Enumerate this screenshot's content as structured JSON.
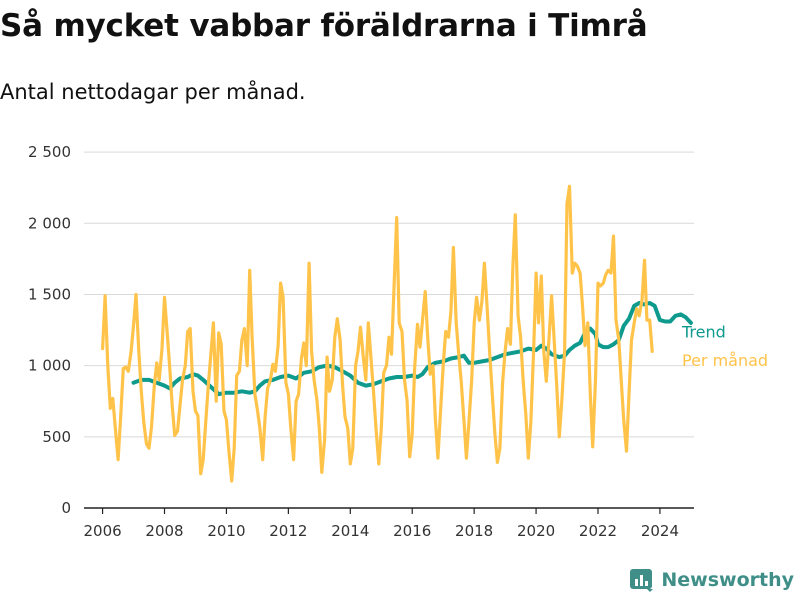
{
  "title": "Så mycket vabbar föräldrarna i Timrå",
  "subtitle": "Antal nettodagar per månad.",
  "brand": "Newsworthy",
  "chart_data": {
    "type": "line",
    "x_axis": {
      "range": [
        2005.4,
        2025.1
      ],
      "ticks": [
        2006,
        2008,
        2010,
        2012,
        2014,
        2016,
        2018,
        2020,
        2022,
        2024
      ]
    },
    "y_axis": {
      "range": [
        0,
        2550
      ],
      "ticks": [
        0,
        500,
        1000,
        1500,
        2000,
        2500
      ],
      "tick_labels": [
        "0",
        "500",
        "1 000",
        "1 500",
        "2 000",
        "2 500"
      ]
    },
    "grid": "horizontal",
    "legend": "right, at line ends",
    "series": [
      {
        "name": "Per månad",
        "color": "#ffc34a",
        "points": [
          [
            2006.0,
            1120
          ],
          [
            2006.08,
            1490
          ],
          [
            2006.17,
            1000
          ],
          [
            2006.25,
            700
          ],
          [
            2006.33,
            770
          ],
          [
            2006.42,
            540
          ],
          [
            2006.5,
            340
          ],
          [
            2006.58,
            620
          ],
          [
            2006.67,
            980
          ],
          [
            2006.75,
            990
          ],
          [
            2006.83,
            960
          ],
          [
            2006.92,
            1100
          ],
          [
            2007.0,
            1280
          ],
          [
            2007.08,
            1500
          ],
          [
            2007.17,
            1100
          ],
          [
            2007.25,
            820
          ],
          [
            2007.33,
            600
          ],
          [
            2007.42,
            450
          ],
          [
            2007.5,
            420
          ],
          [
            2007.58,
            570
          ],
          [
            2007.67,
            860
          ],
          [
            2007.75,
            1020
          ],
          [
            2007.83,
            900
          ],
          [
            2007.92,
            1120
          ],
          [
            2008.0,
            1480
          ],
          [
            2008.08,
            1250
          ],
          [
            2008.17,
            980
          ],
          [
            2008.25,
            720
          ],
          [
            2008.33,
            510
          ],
          [
            2008.42,
            540
          ],
          [
            2008.5,
            720
          ],
          [
            2008.58,
            900
          ],
          [
            2008.67,
            1000
          ],
          [
            2008.75,
            1240
          ],
          [
            2008.83,
            1260
          ],
          [
            2008.92,
            820
          ],
          [
            2009.0,
            680
          ],
          [
            2009.08,
            650
          ],
          [
            2009.17,
            240
          ],
          [
            2009.25,
            340
          ],
          [
            2009.33,
            600
          ],
          [
            2009.42,
            880
          ],
          [
            2009.5,
            1090
          ],
          [
            2009.58,
            1300
          ],
          [
            2009.67,
            750
          ],
          [
            2009.75,
            1230
          ],
          [
            2009.83,
            1150
          ],
          [
            2009.92,
            680
          ],
          [
            2010.0,
            620
          ],
          [
            2010.08,
            400
          ],
          [
            2010.17,
            190
          ],
          [
            2010.25,
            420
          ],
          [
            2010.33,
            930
          ],
          [
            2010.42,
            960
          ],
          [
            2010.5,
            1180
          ],
          [
            2010.58,
            1260
          ],
          [
            2010.67,
            1000
          ],
          [
            2010.75,
            1670
          ],
          [
            2010.83,
            1200
          ],
          [
            2010.92,
            800
          ],
          [
            2011.0,
            690
          ],
          [
            2011.08,
            560
          ],
          [
            2011.17,
            340
          ],
          [
            2011.25,
            640
          ],
          [
            2011.33,
            840
          ],
          [
            2011.42,
            900
          ],
          [
            2011.5,
            1010
          ],
          [
            2011.58,
            960
          ],
          [
            2011.67,
            1140
          ],
          [
            2011.75,
            1580
          ],
          [
            2011.83,
            1480
          ],
          [
            2011.92,
            880
          ],
          [
            2012.0,
            800
          ],
          [
            2012.08,
            560
          ],
          [
            2012.17,
            340
          ],
          [
            2012.25,
            750
          ],
          [
            2012.33,
            800
          ],
          [
            2012.42,
            1050
          ],
          [
            2012.5,
            1160
          ],
          [
            2012.58,
            1000
          ],
          [
            2012.67,
            1720
          ],
          [
            2012.75,
            1100
          ],
          [
            2012.83,
            900
          ],
          [
            2012.92,
            760
          ],
          [
            2013.0,
            560
          ],
          [
            2013.08,
            250
          ],
          [
            2013.17,
            480
          ],
          [
            2013.25,
            1060
          ],
          [
            2013.33,
            820
          ],
          [
            2013.42,
            900
          ],
          [
            2013.5,
            1200
          ],
          [
            2013.58,
            1330
          ],
          [
            2013.67,
            1180
          ],
          [
            2013.75,
            860
          ],
          [
            2013.83,
            640
          ],
          [
            2013.92,
            560
          ],
          [
            2014.0,
            310
          ],
          [
            2014.08,
            420
          ],
          [
            2014.17,
            1000
          ],
          [
            2014.25,
            1100
          ],
          [
            2014.33,
            1270
          ],
          [
            2014.42,
            1060
          ],
          [
            2014.5,
            900
          ],
          [
            2014.58,
            1300
          ],
          [
            2014.67,
            1050
          ],
          [
            2014.75,
            820
          ],
          [
            2014.83,
            560
          ],
          [
            2014.92,
            310
          ],
          [
            2015.0,
            560
          ],
          [
            2015.08,
            950
          ],
          [
            2015.17,
            1000
          ],
          [
            2015.25,
            1200
          ],
          [
            2015.33,
            1080
          ],
          [
            2015.42,
            1600
          ],
          [
            2015.5,
            2040
          ],
          [
            2015.58,
            1300
          ],
          [
            2015.67,
            1240
          ],
          [
            2015.75,
            900
          ],
          [
            2015.83,
            760
          ],
          [
            2015.92,
            360
          ],
          [
            2016.0,
            520
          ],
          [
            2016.08,
            990
          ],
          [
            2016.17,
            1290
          ],
          [
            2016.25,
            1130
          ],
          [
            2016.33,
            1310
          ],
          [
            2016.42,
            1520
          ],
          [
            2016.5,
            1200
          ],
          [
            2016.58,
            940
          ],
          [
            2016.67,
            1000
          ],
          [
            2016.75,
            620
          ],
          [
            2016.83,
            350
          ],
          [
            2016.92,
            700
          ],
          [
            2017.0,
            1000
          ],
          [
            2017.08,
            1240
          ],
          [
            2017.17,
            1200
          ],
          [
            2017.25,
            1380
          ],
          [
            2017.33,
            1830
          ],
          [
            2017.42,
            1300
          ],
          [
            2017.5,
            1080
          ],
          [
            2017.58,
            900
          ],
          [
            2017.67,
            620
          ],
          [
            2017.75,
            350
          ],
          [
            2017.83,
            600
          ],
          [
            2017.92,
            900
          ],
          [
            2018.0,
            1300
          ],
          [
            2018.08,
            1480
          ],
          [
            2018.17,
            1320
          ],
          [
            2018.25,
            1450
          ],
          [
            2018.33,
            1720
          ],
          [
            2018.42,
            1400
          ],
          [
            2018.5,
            1100
          ],
          [
            2018.58,
            820
          ],
          [
            2018.67,
            520
          ],
          [
            2018.75,
            320
          ],
          [
            2018.83,
            420
          ],
          [
            2018.92,
            880
          ],
          [
            2019.0,
            1100
          ],
          [
            2019.08,
            1260
          ],
          [
            2019.17,
            1150
          ],
          [
            2019.25,
            1700
          ],
          [
            2019.33,
            2060
          ],
          [
            2019.42,
            1350
          ],
          [
            2019.5,
            1200
          ],
          [
            2019.58,
            900
          ],
          [
            2019.67,
            650
          ],
          [
            2019.75,
            350
          ],
          [
            2019.83,
            600
          ],
          [
            2019.92,
            1100
          ],
          [
            2020.0,
            1650
          ],
          [
            2020.08,
            1300
          ],
          [
            2020.17,
            1630
          ],
          [
            2020.25,
            1100
          ],
          [
            2020.33,
            890
          ],
          [
            2020.42,
            1200
          ],
          [
            2020.5,
            1490
          ],
          [
            2020.58,
            1200
          ],
          [
            2020.67,
            850
          ],
          [
            2020.75,
            500
          ],
          [
            2020.83,
            750
          ],
          [
            2020.92,
            1100
          ],
          [
            2021.0,
            2140
          ],
          [
            2021.08,
            2260
          ],
          [
            2021.17,
            1650
          ],
          [
            2021.25,
            1720
          ],
          [
            2021.33,
            1700
          ],
          [
            2021.42,
            1650
          ],
          [
            2021.5,
            1420
          ],
          [
            2021.58,
            1140
          ],
          [
            2021.67,
            1300
          ],
          [
            2021.75,
            800
          ],
          [
            2021.83,
            430
          ],
          [
            2021.92,
            900
          ],
          [
            2022.0,
            1580
          ],
          [
            2022.08,
            1560
          ],
          [
            2022.17,
            1580
          ],
          [
            2022.25,
            1640
          ],
          [
            2022.33,
            1670
          ],
          [
            2022.42,
            1650
          ],
          [
            2022.5,
            1910
          ],
          [
            2022.58,
            1320
          ],
          [
            2022.67,
            1180
          ],
          [
            2022.75,
            900
          ],
          [
            2022.83,
            620
          ],
          [
            2022.92,
            400
          ],
          [
            2023.0,
            800
          ],
          [
            2023.08,
            1180
          ],
          [
            2023.17,
            1300
          ],
          [
            2023.25,
            1400
          ],
          [
            2023.33,
            1350
          ],
          [
            2023.42,
            1460
          ],
          [
            2023.5,
            1740
          ],
          [
            2023.58,
            1320
          ],
          [
            2023.67,
            1320
          ],
          [
            2023.75,
            1100
          ]
        ]
      },
      {
        "name": "Trend",
        "color": "#0f9a8e",
        "points": [
          [
            2007.0,
            880
          ],
          [
            2007.25,
            900
          ],
          [
            2007.5,
            900
          ],
          [
            2007.75,
            880
          ],
          [
            2008.0,
            860
          ],
          [
            2008.17,
            840
          ],
          [
            2008.33,
            880
          ],
          [
            2008.5,
            910
          ],
          [
            2008.75,
            920
          ],
          [
            2008.92,
            940
          ],
          [
            2009.08,
            930
          ],
          [
            2009.25,
            900
          ],
          [
            2009.5,
            850
          ],
          [
            2009.75,
            800
          ],
          [
            2010.0,
            810
          ],
          [
            2010.25,
            810
          ],
          [
            2010.5,
            820
          ],
          [
            2010.75,
            810
          ],
          [
            2010.92,
            820
          ],
          [
            2011.08,
            860
          ],
          [
            2011.25,
            890
          ],
          [
            2011.5,
            900
          ],
          [
            2011.75,
            920
          ],
          [
            2012.0,
            930
          ],
          [
            2012.25,
            910
          ],
          [
            2012.5,
            950
          ],
          [
            2012.75,
            960
          ],
          [
            2013.0,
            990
          ],
          [
            2013.25,
            1000
          ],
          [
            2013.5,
            990
          ],
          [
            2013.75,
            960
          ],
          [
            2014.0,
            930
          ],
          [
            2014.25,
            880
          ],
          [
            2014.5,
            860
          ],
          [
            2014.75,
            870
          ],
          [
            2015.0,
            890
          ],
          [
            2015.25,
            910
          ],
          [
            2015.5,
            920
          ],
          [
            2015.75,
            920
          ],
          [
            2016.0,
            930
          ],
          [
            2016.17,
            920
          ],
          [
            2016.33,
            940
          ],
          [
            2016.5,
            990
          ],
          [
            2016.75,
            1020
          ],
          [
            2017.0,
            1030
          ],
          [
            2017.25,
            1050
          ],
          [
            2017.5,
            1060
          ],
          [
            2017.67,
            1070
          ],
          [
            2017.83,
            1020
          ],
          [
            2018.0,
            1020
          ],
          [
            2018.25,
            1030
          ],
          [
            2018.5,
            1040
          ],
          [
            2018.75,
            1060
          ],
          [
            2019.0,
            1080
          ],
          [
            2019.25,
            1090
          ],
          [
            2019.5,
            1100
          ],
          [
            2019.75,
            1120
          ],
          [
            2020.0,
            1110
          ],
          [
            2020.17,
            1140
          ],
          [
            2020.33,
            1120
          ],
          [
            2020.5,
            1080
          ],
          [
            2020.75,
            1060
          ],
          [
            2020.92,
            1070
          ],
          [
            2021.08,
            1110
          ],
          [
            2021.25,
            1140
          ],
          [
            2021.42,
            1160
          ],
          [
            2021.58,
            1230
          ],
          [
            2021.75,
            1260
          ],
          [
            2021.92,
            1220
          ],
          [
            2022.0,
            1150
          ],
          [
            2022.17,
            1130
          ],
          [
            2022.33,
            1130
          ],
          [
            2022.5,
            1150
          ],
          [
            2022.67,
            1180
          ],
          [
            2022.83,
            1280
          ],
          [
            2023.0,
            1330
          ],
          [
            2023.17,
            1420
          ],
          [
            2023.33,
            1440
          ],
          [
            2023.5,
            1430
          ],
          [
            2023.67,
            1440
          ],
          [
            2023.83,
            1420
          ],
          [
            2024.0,
            1320
          ],
          [
            2024.17,
            1310
          ],
          [
            2024.33,
            1310
          ],
          [
            2024.5,
            1350
          ],
          [
            2024.67,
            1360
          ],
          [
            2024.83,
            1340
          ],
          [
            2025.0,
            1300
          ]
        ]
      }
    ]
  }
}
